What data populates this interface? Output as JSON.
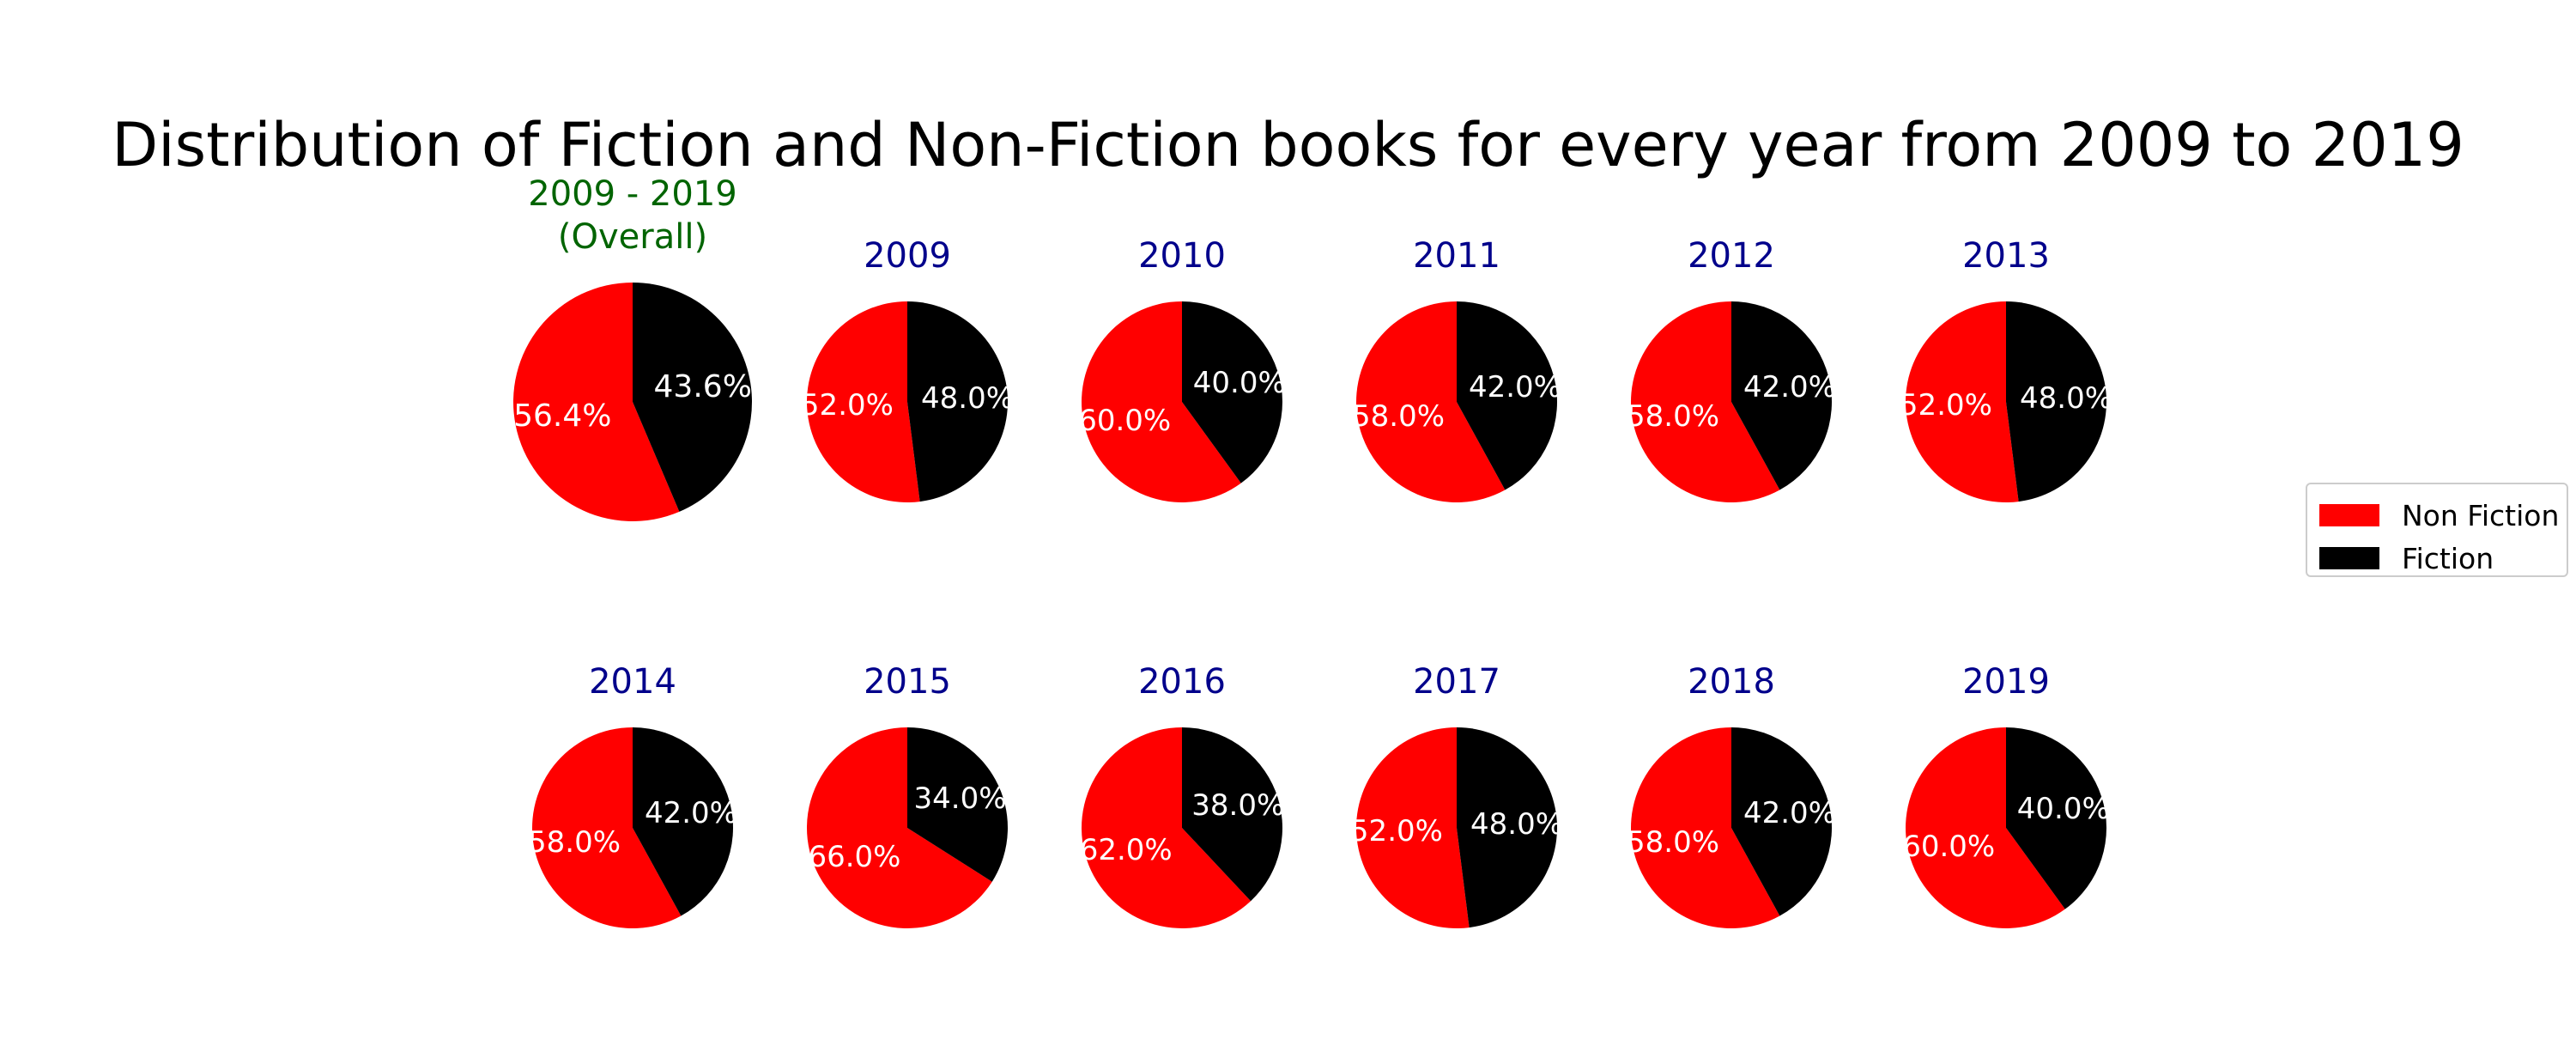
{
  "chart_data": {
    "type": "pie",
    "title": "Distribution of Fiction and Non-Fiction books for every year from 2009 to 2019",
    "legend": {
      "placement": "center-right",
      "entries": [
        {
          "name": "Non Fiction",
          "color": "#ff0000"
        },
        {
          "name": "Fiction",
          "color": "#000000"
        }
      ]
    },
    "colors": {
      "Non Fiction": "#ff0000",
      "Fiction": "#000000",
      "overall_title": "#006400",
      "year_title": "#00008b",
      "label": "#ffffff"
    },
    "pies": [
      {
        "title": "2009 - 2019\n(Overall)",
        "overall": true,
        "slices": [
          {
            "name": "Non Fiction",
            "value": 56.4,
            "label": "56.4%"
          },
          {
            "name": "Fiction",
            "value": 43.6,
            "label": "43.6%"
          }
        ]
      },
      {
        "title": "2009",
        "slices": [
          {
            "name": "Non Fiction",
            "value": 52.0,
            "label": "52.0%"
          },
          {
            "name": "Fiction",
            "value": 48.0,
            "label": "48.0%"
          }
        ]
      },
      {
        "title": "2010",
        "slices": [
          {
            "name": "Non Fiction",
            "value": 60.0,
            "label": "60.0%"
          },
          {
            "name": "Fiction",
            "value": 40.0,
            "label": "40.0%"
          }
        ]
      },
      {
        "title": "2011",
        "slices": [
          {
            "name": "Non Fiction",
            "value": 58.0,
            "label": "58.0%"
          },
          {
            "name": "Fiction",
            "value": 42.0,
            "label": "42.0%"
          }
        ]
      },
      {
        "title": "2012",
        "slices": [
          {
            "name": "Non Fiction",
            "value": 58.0,
            "label": "58.0%"
          },
          {
            "name": "Fiction",
            "value": 42.0,
            "label": "42.0%"
          }
        ]
      },
      {
        "title": "2013",
        "slices": [
          {
            "name": "Non Fiction",
            "value": 52.0,
            "label": "52.0%"
          },
          {
            "name": "Fiction",
            "value": 48.0,
            "label": "48.0%"
          }
        ]
      },
      {
        "title": "2014",
        "slices": [
          {
            "name": "Non Fiction",
            "value": 58.0,
            "label": "58.0%"
          },
          {
            "name": "Fiction",
            "value": 42.0,
            "label": "42.0%"
          }
        ]
      },
      {
        "title": "2015",
        "slices": [
          {
            "name": "Non Fiction",
            "value": 66.0,
            "label": "66.0%"
          },
          {
            "name": "Fiction",
            "value": 34.0,
            "label": "34.0%"
          }
        ]
      },
      {
        "title": "2016",
        "slices": [
          {
            "name": "Non Fiction",
            "value": 62.0,
            "label": "62.0%"
          },
          {
            "name": "Fiction",
            "value": 38.0,
            "label": "38.0%"
          }
        ]
      },
      {
        "title": "2017",
        "slices": [
          {
            "name": "Non Fiction",
            "value": 52.0,
            "label": "52.0%"
          },
          {
            "name": "Fiction",
            "value": 48.0,
            "label": "48.0%"
          }
        ]
      },
      {
        "title": "2018",
        "slices": [
          {
            "name": "Non Fiction",
            "value": 58.0,
            "label": "58.0%"
          },
          {
            "name": "Fiction",
            "value": 42.0,
            "label": "42.0%"
          }
        ]
      },
      {
        "title": "2019",
        "slices": [
          {
            "name": "Non Fiction",
            "value": 60.0,
            "label": "60.0%"
          },
          {
            "name": "Fiction",
            "value": 40.0,
            "label": "40.0%"
          }
        ]
      }
    ]
  }
}
